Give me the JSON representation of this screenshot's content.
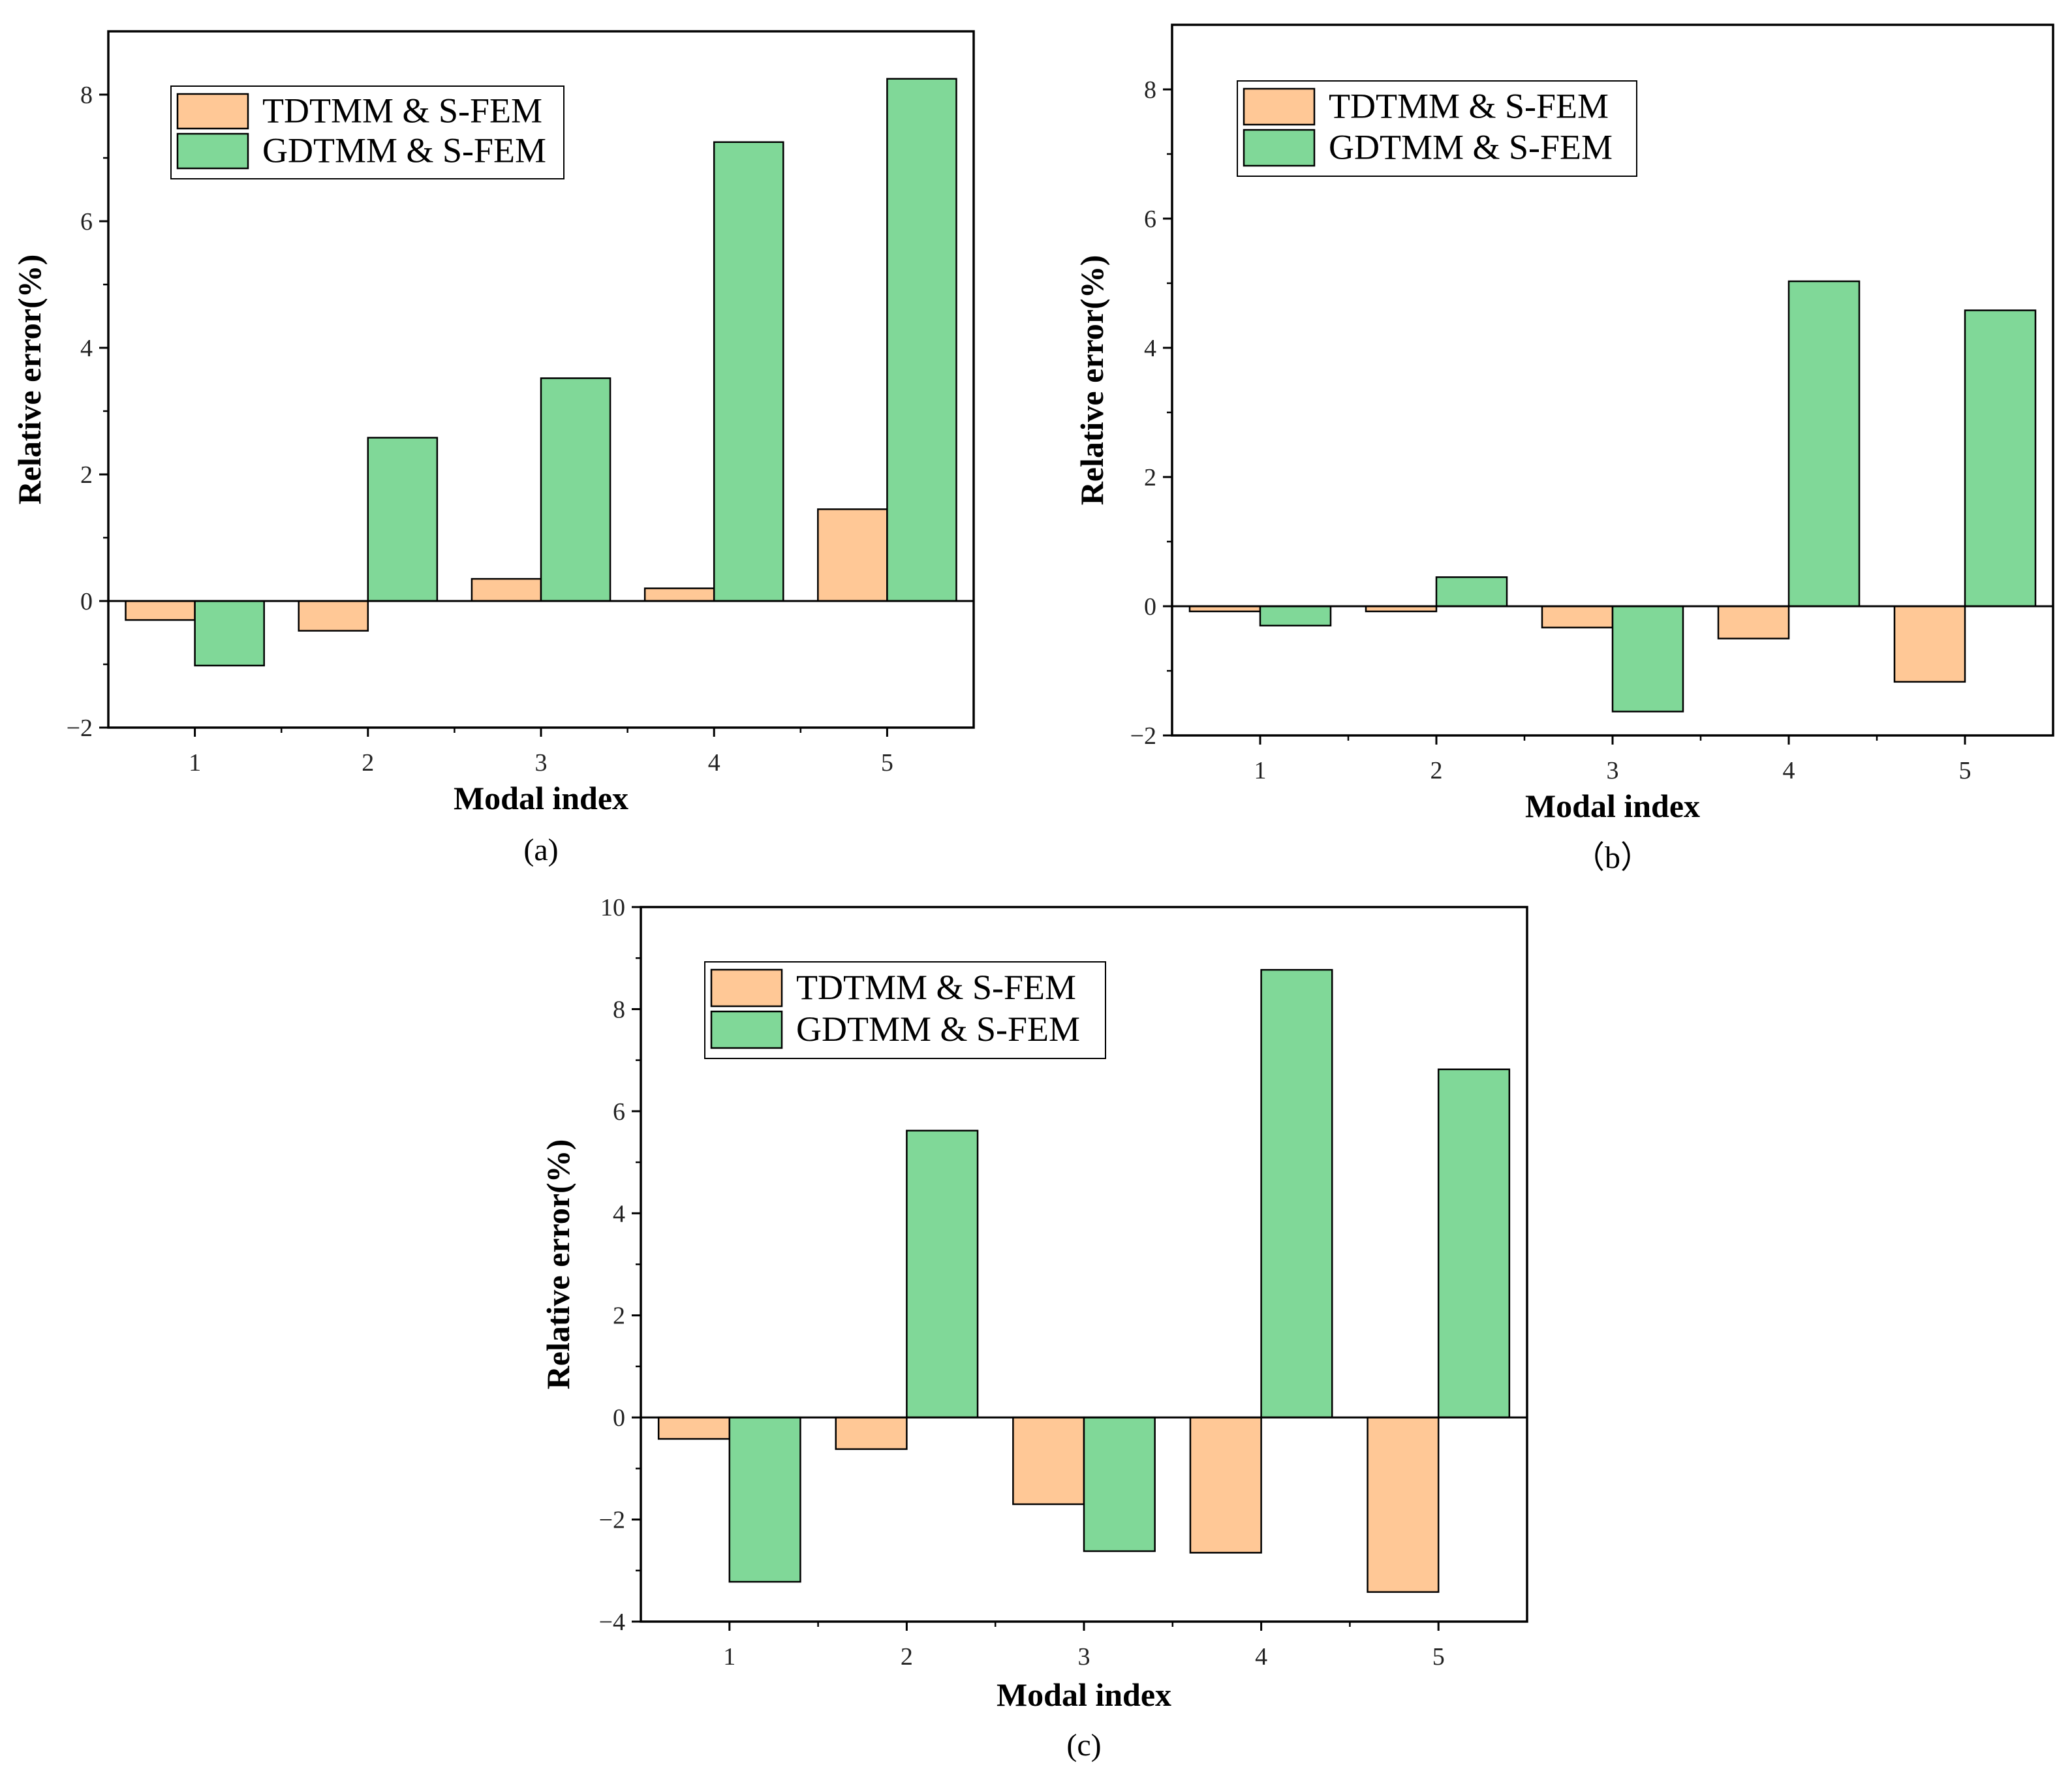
{
  "chart_data": [
    {
      "type": "bar",
      "panel_caption": "(a)",
      "categories": [
        "1",
        "2",
        "3",
        "4",
        "5"
      ],
      "series": [
        {
          "name": "TDTMM & S-FEM",
          "color": "#FFC896",
          "values": [
            -0.3,
            -0.47,
            0.35,
            0.2,
            1.45
          ]
        },
        {
          "name": "GDTMM & S-FEM",
          "color": "#80D898",
          "values": [
            -1.02,
            2.58,
            3.52,
            7.25,
            8.25
          ]
        }
      ],
      "xlabel": "Modal index",
      "ylabel": "Relative error(%)",
      "ylim": [
        -2,
        9
      ],
      "yticks": [
        -2,
        0,
        2,
        4,
        6,
        8
      ],
      "ytick_labels": [
        "−2",
        "0",
        "2",
        "4",
        "6",
        "8"
      ],
      "legend_position": "top-left"
    },
    {
      "type": "bar",
      "panel_caption": "（b）",
      "categories": [
        "1",
        "2",
        "3",
        "4",
        "5"
      ],
      "series": [
        {
          "name": "TDTMM & S-FEM",
          "color": "#FFC896",
          "values": [
            -0.08,
            -0.08,
            -0.33,
            -0.5,
            -1.17
          ]
        },
        {
          "name": "GDTMM & S-FEM",
          "color": "#80D898",
          "values": [
            -0.3,
            0.45,
            -1.63,
            5.03,
            4.58
          ]
        }
      ],
      "xlabel": "Modal index",
      "ylabel": "Relative error(%)",
      "ylim": [
        -2,
        9
      ],
      "yticks": [
        -2,
        0,
        2,
        4,
        6,
        8
      ],
      "ytick_labels": [
        "−2",
        "0",
        "2",
        "4",
        "6",
        "8"
      ],
      "legend_position": "top-left"
    },
    {
      "type": "bar",
      "panel_caption": "(c)",
      "categories": [
        "1",
        "2",
        "3",
        "4",
        "5"
      ],
      "series": [
        {
          "name": "TDTMM & S-FEM",
          "color": "#FFC896",
          "values": [
            -0.42,
            -0.62,
            -1.7,
            -2.65,
            -3.42
          ]
        },
        {
          "name": "GDTMM & S-FEM",
          "color": "#80D898",
          "values": [
            -3.22,
            5.62,
            -2.62,
            8.77,
            6.82
          ]
        }
      ],
      "xlabel": "Modal index",
      "ylabel": "Relative error(%)",
      "ylim": [
        -4,
        10
      ],
      "yticks": [
        -4,
        -2,
        0,
        2,
        4,
        6,
        8,
        10
      ],
      "ytick_labels": [
        "−4",
        "−2",
        "0",
        "2",
        "4",
        "6",
        "8",
        "10"
      ],
      "legend_position": "top-left"
    }
  ]
}
